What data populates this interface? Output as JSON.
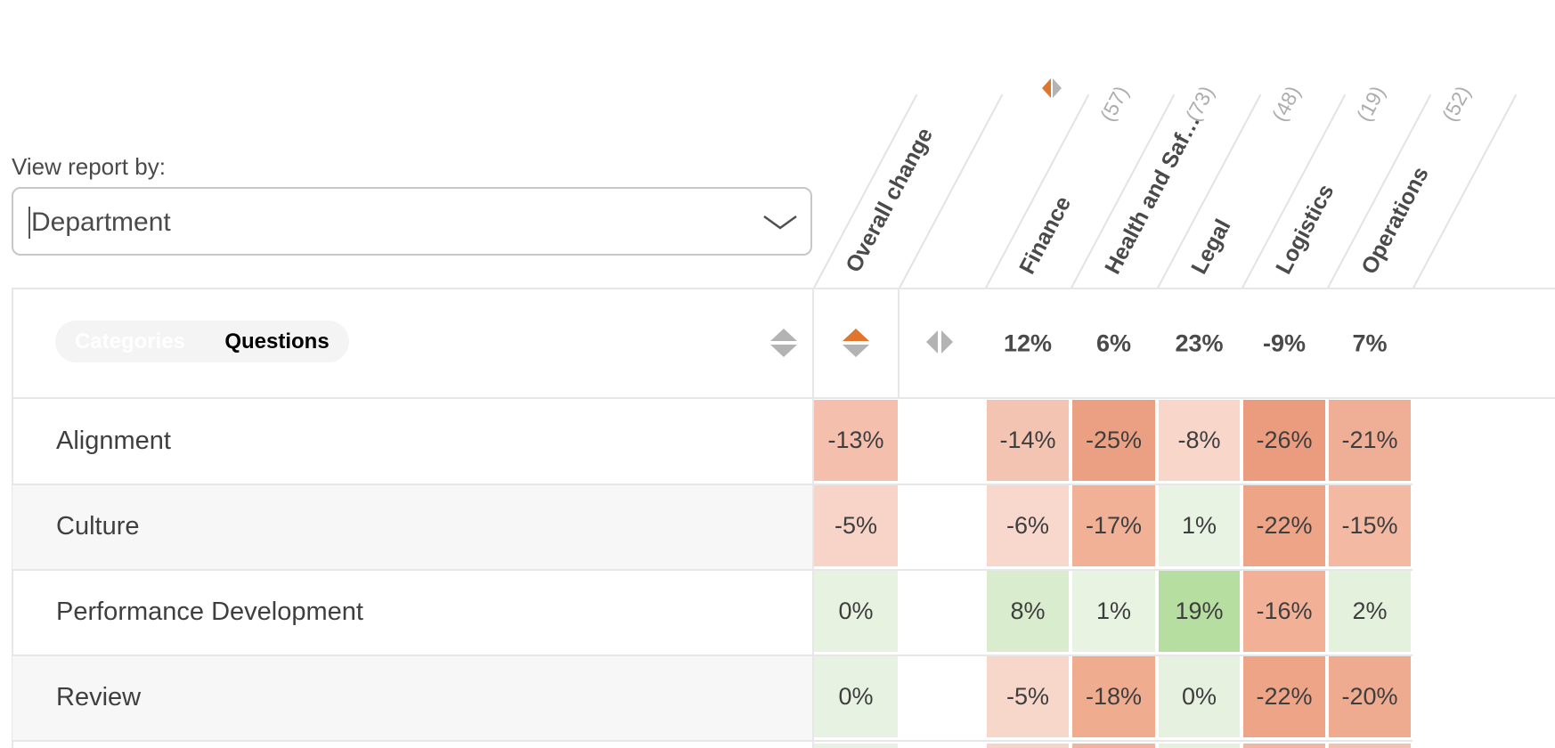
{
  "colors": {
    "accent_orange": "#e0752e",
    "triangle_gray": "#b3b3b3",
    "grid_line": "#e7e7e7",
    "diagonal_line": "#e3e3e3",
    "zebra_row": "#f7f7f7"
  },
  "icons": {
    "dropdown": "chevron-down",
    "sort_rows": "up-down-triangles",
    "sort_overall": "up-down-triangles-orange-up",
    "sort_columns": "left-right-triangles",
    "column_direction": "left-right-diamond-orange-left"
  },
  "view_report": {
    "label": "View report by:",
    "value": "Department"
  },
  "toggle": {
    "categories": "Categories",
    "questions": "Questions",
    "active": "Categories"
  },
  "columns": {
    "overall": {
      "label": "Overall change"
    },
    "departments": [
      {
        "label": "Finance",
        "count": "(57)",
        "change": "12%"
      },
      {
        "label": "Health and Saf…",
        "count": "(73)",
        "change": "6%"
      },
      {
        "label": "Legal",
        "count": "(48)",
        "change": "23%"
      },
      {
        "label": "Logistics",
        "count": "(19)",
        "change": "-9%"
      },
      {
        "label": "Operations",
        "count": "(52)",
        "change": "7%"
      }
    ]
  },
  "rows": [
    {
      "label": "Alignment",
      "overall": {
        "text": "-13%",
        "bg": "#f4c0ad"
      },
      "cells": [
        {
          "text": "-14%",
          "bg": "#f4c4b2"
        },
        {
          "text": "-25%",
          "bg": "#eca083"
        },
        {
          "text": "-8%",
          "bg": "#f8d6ca"
        },
        {
          "text": "-26%",
          "bg": "#eb9c7f"
        },
        {
          "text": "-21%",
          "bg": "#efaf97"
        }
      ]
    },
    {
      "label": "Culture",
      "overall": {
        "text": "-5%",
        "bg": "#f8d4c8"
      },
      "cells": [
        {
          "text": "-6%",
          "bg": "#f8d7cc"
        },
        {
          "text": "-17%",
          "bg": "#f1b197"
        },
        {
          "text": "1%",
          "bg": "#e9f3e3"
        },
        {
          "text": "-22%",
          "bg": "#eea487"
        },
        {
          "text": "-15%",
          "bg": "#f3b9a3"
        }
      ]
    },
    {
      "label": "Performance Development",
      "overall": {
        "text": "0%",
        "bg": "#e7f2e1"
      },
      "cells": [
        {
          "text": "8%",
          "bg": "#d9ecce"
        },
        {
          "text": "1%",
          "bg": "#e8f3e2"
        },
        {
          "text": "19%",
          "bg": "#b6dea1"
        },
        {
          "text": "-16%",
          "bg": "#f2b197"
        },
        {
          "text": "2%",
          "bg": "#e4f1dc"
        }
      ]
    },
    {
      "label": "Review",
      "overall": {
        "text": "0%",
        "bg": "#e8f2e2"
      },
      "cells": [
        {
          "text": "-5%",
          "bg": "#f8d7cb"
        },
        {
          "text": "-18%",
          "bg": "#f0ac8f"
        },
        {
          "text": "0%",
          "bg": "#e6f1e0"
        },
        {
          "text": "-22%",
          "bg": "#eea487"
        },
        {
          "text": "-20%",
          "bg": "#eeab90"
        }
      ]
    }
  ],
  "partial_row": {
    "overall_bg": "#e8f2e2",
    "cell_bgs": [
      "#f5d4ca",
      "#f0b59e",
      "#e4f1dd",
      "#f0b8a3",
      "#f2c1af"
    ]
  }
}
